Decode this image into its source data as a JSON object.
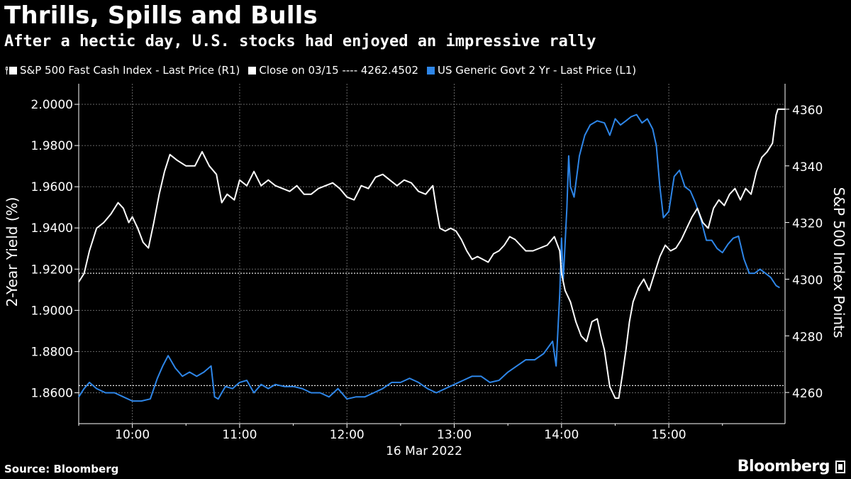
{
  "title": "Thrills, Spills and Bulls",
  "subtitle": "After a hectic day, U.S. stocks had enjoyed an impressive rally",
  "legend": [
    {
      "label": "S&P 500 Fast Cash Index - Last Price (R1)",
      "color": "#ffffff",
      "icon": "pin-icon"
    },
    {
      "label": "Close on 03/15 ---- 4262.4502",
      "color": "#ffffff",
      "icon": "square-icon"
    },
    {
      "label": "US Generic Govt 2 Yr - Last Price (L1)",
      "color": "#2e86e8",
      "icon": "square-icon"
    }
  ],
  "source": "Source: Bloomberg",
  "brand": "Bloomberg",
  "chart_data": {
    "type": "line",
    "xlabel": "16 Mar 2022",
    "x_ticks": [
      "10:00",
      "11:00",
      "12:00",
      "13:00",
      "14:00",
      "15:00"
    ],
    "x_range": [
      "09:30",
      "16:05"
    ],
    "left_axis": {
      "label": "2-Year Yield (%)",
      "ticks": [
        "1.8600",
        "1.8800",
        "1.9000",
        "1.9200",
        "1.9400",
        "1.9600",
        "1.9800",
        "2.0000"
      ],
      "range": [
        1.845,
        2.01
      ]
    },
    "right_axis": {
      "label": "S&P 500 Index Points",
      "ticks": [
        "4260",
        "4280",
        "4300",
        "4320",
        "4340",
        "4360"
      ],
      "range": [
        4249,
        4369
      ]
    },
    "reference_lines": [
      {
        "axis": "right",
        "value": 4262.45,
        "style": "dotted",
        "color": "#ffffff"
      },
      {
        "axis": "left",
        "value": 1.918,
        "style": "dotted",
        "color": "#ffffff"
      }
    ],
    "grid": true,
    "series": [
      {
        "name": "US Generic Govt 2 Yr - Last Price (L1)",
        "axis": "left",
        "color": "#2e86e8",
        "points": [
          [
            "09:30",
            1.858
          ],
          [
            "09:33",
            1.862
          ],
          [
            "09:36",
            1.865
          ],
          [
            "09:40",
            1.862
          ],
          [
            "09:45",
            1.86
          ],
          [
            "09:50",
            1.86
          ],
          [
            "09:55",
            1.858
          ],
          [
            "10:00",
            1.856
          ],
          [
            "10:05",
            1.856
          ],
          [
            "10:10",
            1.857
          ],
          [
            "10:14",
            1.867
          ],
          [
            "10:17",
            1.873
          ],
          [
            "10:20",
            1.878
          ],
          [
            "10:24",
            1.872
          ],
          [
            "10:28",
            1.868
          ],
          [
            "10:32",
            1.87
          ],
          [
            "10:36",
            1.868
          ],
          [
            "10:40",
            1.87
          ],
          [
            "10:44",
            1.873
          ],
          [
            "10:46",
            1.858
          ],
          [
            "10:48",
            1.857
          ],
          [
            "10:52",
            1.863
          ],
          [
            "10:56",
            1.862
          ],
          [
            "11:00",
            1.865
          ],
          [
            "11:04",
            1.866
          ],
          [
            "11:08",
            1.86
          ],
          [
            "11:12",
            1.864
          ],
          [
            "11:16",
            1.862
          ],
          [
            "11:20",
            1.864
          ],
          [
            "11:25",
            1.863
          ],
          [
            "11:30",
            1.863
          ],
          [
            "11:35",
            1.862
          ],
          [
            "11:40",
            1.86
          ],
          [
            "11:45",
            1.86
          ],
          [
            "11:50",
            1.858
          ],
          [
            "11:55",
            1.862
          ],
          [
            "12:00",
            1.857
          ],
          [
            "12:05",
            1.858
          ],
          [
            "12:10",
            1.858
          ],
          [
            "12:15",
            1.86
          ],
          [
            "12:20",
            1.862
          ],
          [
            "12:25",
            1.865
          ],
          [
            "12:30",
            1.865
          ],
          [
            "12:35",
            1.867
          ],
          [
            "12:40",
            1.865
          ],
          [
            "12:45",
            1.862
          ],
          [
            "12:50",
            1.86
          ],
          [
            "12:55",
            1.862
          ],
          [
            "13:00",
            1.864
          ],
          [
            "13:05",
            1.866
          ],
          [
            "13:10",
            1.868
          ],
          [
            "13:15",
            1.868
          ],
          [
            "13:20",
            1.865
          ],
          [
            "13:25",
            1.866
          ],
          [
            "13:30",
            1.87
          ],
          [
            "13:35",
            1.873
          ],
          [
            "13:40",
            1.876
          ],
          [
            "13:45",
            1.876
          ],
          [
            "13:50",
            1.879
          ],
          [
            "13:55",
            1.885
          ],
          [
            "13:57",
            1.873
          ],
          [
            "13:59",
            1.908
          ],
          [
            "14:00",
            1.935
          ],
          [
            "14:01",
            1.915
          ],
          [
            "14:03",
            1.95
          ],
          [
            "14:04",
            1.975
          ],
          [
            "14:05",
            1.96
          ],
          [
            "14:07",
            1.955
          ],
          [
            "14:10",
            1.975
          ],
          [
            "14:13",
            1.985
          ],
          [
            "14:16",
            1.99
          ],
          [
            "14:20",
            1.992
          ],
          [
            "14:24",
            1.991
          ],
          [
            "14:27",
            1.985
          ],
          [
            "14:30",
            1.993
          ],
          [
            "14:33",
            1.99
          ],
          [
            "14:36",
            1.992
          ],
          [
            "14:39",
            1.994
          ],
          [
            "14:42",
            1.995
          ],
          [
            "14:45",
            1.991
          ],
          [
            "14:48",
            1.993
          ],
          [
            "14:51",
            1.988
          ],
          [
            "14:53",
            1.98
          ],
          [
            "14:55",
            1.96
          ],
          [
            "14:57",
            1.945
          ],
          [
            "15:00",
            1.948
          ],
          [
            "15:03",
            1.965
          ],
          [
            "15:06",
            1.968
          ],
          [
            "15:09",
            1.96
          ],
          [
            "15:12",
            1.958
          ],
          [
            "15:15",
            1.952
          ],
          [
            "15:18",
            1.944
          ],
          [
            "15:21",
            1.934
          ],
          [
            "15:24",
            1.934
          ],
          [
            "15:27",
            1.93
          ],
          [
            "15:30",
            1.928
          ],
          [
            "15:33",
            1.932
          ],
          [
            "15:36",
            1.935
          ],
          [
            "15:39",
            1.936
          ],
          [
            "15:42",
            1.925
          ],
          [
            "15:45",
            1.918
          ],
          [
            "15:48",
            1.918
          ],
          [
            "15:51",
            1.92
          ],
          [
            "15:54",
            1.918
          ],
          [
            "15:57",
            1.916
          ],
          [
            "16:00",
            1.912
          ],
          [
            "16:02",
            1.911
          ]
        ]
      },
      {
        "name": "S&P 500 Fast Cash Index - Last Price (R1)",
        "axis": "right",
        "color": "#ffffff",
        "points": [
          [
            "09:30",
            4299
          ],
          [
            "09:33",
            4302
          ],
          [
            "09:36",
            4310
          ],
          [
            "09:40",
            4318
          ],
          [
            "09:44",
            4320
          ],
          [
            "09:48",
            4323
          ],
          [
            "09:52",
            4327
          ],
          [
            "09:55",
            4325
          ],
          [
            "09:58",
            4320
          ],
          [
            "10:00",
            4322
          ],
          [
            "10:03",
            4318
          ],
          [
            "10:06",
            4313
          ],
          [
            "10:09",
            4311
          ],
          [
            "10:12",
            4320
          ],
          [
            "10:15",
            4330
          ],
          [
            "10:18",
            4338
          ],
          [
            "10:21",
            4344
          ],
          [
            "10:25",
            4342
          ],
          [
            "10:30",
            4340
          ],
          [
            "10:35",
            4340
          ],
          [
            "10:39",
            4345
          ],
          [
            "10:43",
            4340
          ],
          [
            "10:47",
            4337
          ],
          [
            "10:50",
            4327
          ],
          [
            "10:53",
            4330
          ],
          [
            "10:57",
            4328
          ],
          [
            "11:00",
            4335
          ],
          [
            "11:04",
            4333
          ],
          [
            "11:08",
            4338
          ],
          [
            "11:12",
            4333
          ],
          [
            "11:16",
            4335
          ],
          [
            "11:20",
            4333
          ],
          [
            "11:24",
            4332
          ],
          [
            "11:28",
            4331
          ],
          [
            "11:32",
            4333
          ],
          [
            "11:36",
            4330
          ],
          [
            "11:40",
            4330
          ],
          [
            "11:44",
            4332
          ],
          [
            "11:48",
            4333
          ],
          [
            "11:52",
            4334
          ],
          [
            "11:56",
            4332
          ],
          [
            "12:00",
            4329
          ],
          [
            "12:04",
            4328
          ],
          [
            "12:08",
            4333
          ],
          [
            "12:12",
            4332
          ],
          [
            "12:16",
            4336
          ],
          [
            "12:20",
            4337
          ],
          [
            "12:24",
            4335
          ],
          [
            "12:28",
            4333
          ],
          [
            "12:32",
            4335
          ],
          [
            "12:36",
            4334
          ],
          [
            "12:40",
            4331
          ],
          [
            "12:44",
            4330
          ],
          [
            "12:48",
            4333
          ],
          [
            "12:50",
            4325
          ],
          [
            "12:52",
            4318
          ],
          [
            "12:55",
            4317
          ],
          [
            "12:58",
            4318
          ],
          [
            "13:01",
            4317
          ],
          [
            "13:04",
            4314
          ],
          [
            "13:07",
            4310
          ],
          [
            "13:10",
            4307
          ],
          [
            "13:13",
            4308
          ],
          [
            "13:16",
            4307
          ],
          [
            "13:19",
            4306
          ],
          [
            "13:22",
            4309
          ],
          [
            "13:25",
            4310
          ],
          [
            "13:28",
            4312
          ],
          [
            "13:31",
            4315
          ],
          [
            "13:34",
            4314
          ],
          [
            "13:37",
            4312
          ],
          [
            "13:40",
            4310
          ],
          [
            "13:44",
            4310
          ],
          [
            "13:48",
            4311
          ],
          [
            "13:52",
            4312
          ],
          [
            "13:56",
            4315
          ],
          [
            "13:59",
            4310
          ],
          [
            "14:00",
            4302
          ],
          [
            "14:02",
            4296
          ],
          [
            "14:05",
            4292
          ],
          [
            "14:08",
            4285
          ],
          [
            "14:11",
            4280
          ],
          [
            "14:14",
            4278
          ],
          [
            "14:17",
            4285
          ],
          [
            "14:20",
            4286
          ],
          [
            "14:22",
            4280
          ],
          [
            "14:24",
            4275
          ],
          [
            "14:27",
            4262
          ],
          [
            "14:30",
            4258
          ],
          [
            "14:32",
            4258
          ],
          [
            "14:34",
            4266
          ],
          [
            "14:36",
            4275
          ],
          [
            "14:38",
            4285
          ],
          [
            "14:40",
            4292
          ],
          [
            "14:43",
            4297
          ],
          [
            "14:46",
            4300
          ],
          [
            "14:49",
            4296
          ],
          [
            "14:52",
            4302
          ],
          [
            "14:55",
            4308
          ],
          [
            "14:58",
            4312
          ],
          [
            "15:01",
            4310
          ],
          [
            "15:04",
            4311
          ],
          [
            "15:07",
            4314
          ],
          [
            "15:10",
            4318
          ],
          [
            "15:13",
            4322
          ],
          [
            "15:16",
            4325
          ],
          [
            "15:19",
            4320
          ],
          [
            "15:22",
            4318
          ],
          [
            "15:25",
            4325
          ],
          [
            "15:28",
            4328
          ],
          [
            "15:31",
            4326
          ],
          [
            "15:34",
            4330
          ],
          [
            "15:37",
            4332
          ],
          [
            "15:40",
            4328
          ],
          [
            "15:43",
            4332
          ],
          [
            "15:46",
            4330
          ],
          [
            "15:49",
            4338
          ],
          [
            "15:52",
            4343
          ],
          [
            "15:55",
            4345
          ],
          [
            "15:58",
            4348
          ],
          [
            "16:00",
            4358
          ],
          [
            "16:01",
            4360
          ]
        ]
      }
    ]
  }
}
